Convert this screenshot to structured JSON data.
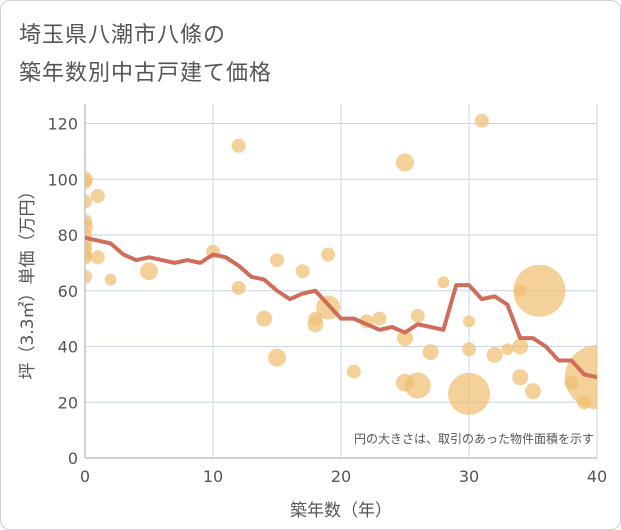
{
  "title": {
    "line1": "埼玉県八潮市八條の",
    "line2": "築年数別中古戸建て価格"
  },
  "colors": {
    "bubble": "#f0bf72",
    "line": "#d06d5a",
    "grid": "#c9d6e3",
    "text": "#555555"
  },
  "chart_data": {
    "type": "scatter",
    "xlabel": "築年数（年）",
    "ylabel": "坪（3.3㎡）単価（万円）",
    "xlim": [
      0,
      40
    ],
    "ylim": [
      0,
      127
    ],
    "xticks": [
      0,
      10,
      20,
      30,
      40
    ],
    "yticks": [
      0,
      20,
      40,
      60,
      80,
      100,
      120
    ],
    "grid": true,
    "note": "円の大きさは、取引のあった物件面積を示す",
    "bubbles": [
      {
        "x": 0,
        "y": 100,
        "r": 8
      },
      {
        "x": 0,
        "y": 99,
        "r": 7
      },
      {
        "x": 0,
        "y": 92,
        "r": 7
      },
      {
        "x": 0,
        "y": 85,
        "r": 7
      },
      {
        "x": 0,
        "y": 83,
        "r": 8
      },
      {
        "x": 0,
        "y": 80,
        "r": 7
      },
      {
        "x": 0,
        "y": 77,
        "r": 7
      },
      {
        "x": 0,
        "y": 75,
        "r": 7
      },
      {
        "x": 0,
        "y": 73,
        "r": 7
      },
      {
        "x": 0,
        "y": 72,
        "r": 7
      },
      {
        "x": 0,
        "y": 65,
        "r": 7
      },
      {
        "x": 1,
        "y": 94,
        "r": 7
      },
      {
        "x": 1,
        "y": 72,
        "r": 7
      },
      {
        "x": 2,
        "y": 64,
        "r": 6
      },
      {
        "x": 5,
        "y": 67,
        "r": 9
      },
      {
        "x": 10,
        "y": 74,
        "r": 7
      },
      {
        "x": 12,
        "y": 112,
        "r": 7
      },
      {
        "x": 12,
        "y": 61,
        "r": 7
      },
      {
        "x": 14,
        "y": 50,
        "r": 8
      },
      {
        "x": 15,
        "y": 71,
        "r": 7
      },
      {
        "x": 15,
        "y": 36,
        "r": 9
      },
      {
        "x": 17,
        "y": 67,
        "r": 7
      },
      {
        "x": 18,
        "y": 50,
        "r": 7
      },
      {
        "x": 18,
        "y": 48,
        "r": 8
      },
      {
        "x": 19,
        "y": 73,
        "r": 7
      },
      {
        "x": 19,
        "y": 54,
        "r": 12
      },
      {
        "x": 21,
        "y": 31,
        "r": 7
      },
      {
        "x": 22,
        "y": 49,
        "r": 7
      },
      {
        "x": 23,
        "y": 50,
        "r": 7
      },
      {
        "x": 25,
        "y": 106,
        "r": 9
      },
      {
        "x": 25,
        "y": 43,
        "r": 8
      },
      {
        "x": 25,
        "y": 27,
        "r": 9
      },
      {
        "x": 26,
        "y": 51,
        "r": 7
      },
      {
        "x": 26,
        "y": 26,
        "r": 13
      },
      {
        "x": 27,
        "y": 38,
        "r": 8
      },
      {
        "x": 28,
        "y": 63,
        "r": 6
      },
      {
        "x": 30,
        "y": 49,
        "r": 6
      },
      {
        "x": 30,
        "y": 39,
        "r": 7
      },
      {
        "x": 30,
        "y": 23,
        "r": 21
      },
      {
        "x": 31,
        "y": 121,
        "r": 7
      },
      {
        "x": 32,
        "y": 37,
        "r": 8
      },
      {
        "x": 33,
        "y": 39,
        "r": 6
      },
      {
        "x": 34,
        "y": 60,
        "r": 6
      },
      {
        "x": 34,
        "y": 40,
        "r": 8
      },
      {
        "x": 34,
        "y": 29,
        "r": 8
      },
      {
        "x": 35,
        "y": 24,
        "r": 8
      },
      {
        "x": 35.5,
        "y": 60,
        "r": 26
      },
      {
        "x": 38,
        "y": 27,
        "r": 7
      },
      {
        "x": 39,
        "y": 20,
        "r": 7
      },
      {
        "x": 40,
        "y": 29,
        "r": 32
      }
    ],
    "trend": {
      "x": [
        0,
        1,
        2,
        3,
        4,
        5,
        6,
        7,
        8,
        9,
        10,
        11,
        12,
        13,
        14,
        15,
        16,
        17,
        18,
        19,
        20,
        21,
        22,
        23,
        24,
        25,
        26,
        27,
        28,
        29,
        30,
        31,
        32,
        33,
        34,
        35,
        36,
        37,
        38,
        39,
        40
      ],
      "y": [
        79,
        78,
        77,
        73,
        71,
        72,
        71,
        70,
        71,
        70,
        73,
        72,
        69,
        65,
        64,
        60,
        57,
        59,
        60,
        55,
        50,
        50,
        48,
        46,
        47,
        45,
        48,
        47,
        46,
        62,
        62,
        57,
        58,
        55,
        43,
        43,
        40,
        35,
        35,
        30,
        29
      ]
    }
  }
}
